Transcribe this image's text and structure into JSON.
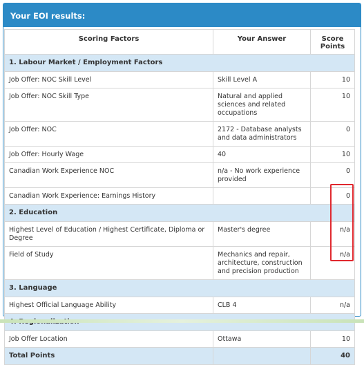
{
  "panel": {
    "title": "Your EOI results:"
  },
  "table": {
    "headers": {
      "factor": "Scoring Factors",
      "answer": "Your Answer",
      "points": "Score Points"
    },
    "rows": [
      {
        "kind": "section",
        "label": "1. Labour Market / Employment Factors"
      },
      {
        "kind": "row",
        "factor": "Job Offer: NOC Skill Level",
        "answer": "Skill Level A",
        "points": "10"
      },
      {
        "kind": "row",
        "factor": "Job Offer: NOC Skill Type",
        "answer": "Natural and applied sciences and related occupations",
        "points": "10"
      },
      {
        "kind": "row",
        "factor": "Job Offer: NOC",
        "answer": "2172 - Database analysts and data administrators",
        "points": "0"
      },
      {
        "kind": "row",
        "factor": "Job Offer: Hourly Wage",
        "answer": "40",
        "points": "10"
      },
      {
        "kind": "row",
        "factor": "Canadian Work Experience NOC",
        "answer": "n/a - No work experience provided",
        "points": "0"
      },
      {
        "kind": "row",
        "factor": "Canadian Work Experience: Earnings History",
        "answer": "",
        "points": "0"
      },
      {
        "kind": "section",
        "label": "2. Education"
      },
      {
        "kind": "row",
        "factor": "Highest Level of Education / Highest Certificate, Diploma or Degree",
        "answer": "Master's degree",
        "points": "n/a"
      },
      {
        "kind": "row",
        "factor": "Field of Study",
        "answer": "Mechanics and repair, architecture, construction and precision production",
        "points": "n/a"
      },
      {
        "kind": "section",
        "label": "3. Language"
      },
      {
        "kind": "row",
        "factor": "Highest Official Language Ability",
        "answer": "CLB 4",
        "points": "n/a"
      },
      {
        "kind": "section",
        "label": "4. Regionalization"
      },
      {
        "kind": "row",
        "factor": "Job Offer Location",
        "answer": "Ottawa",
        "points": "10"
      },
      {
        "kind": "total",
        "factor": "Total Points",
        "answer": "",
        "points": "40"
      }
    ]
  },
  "colors": {
    "header": "#2c8ac6",
    "section_bg": "#d4e7f5",
    "highlight": "#e0282e"
  }
}
